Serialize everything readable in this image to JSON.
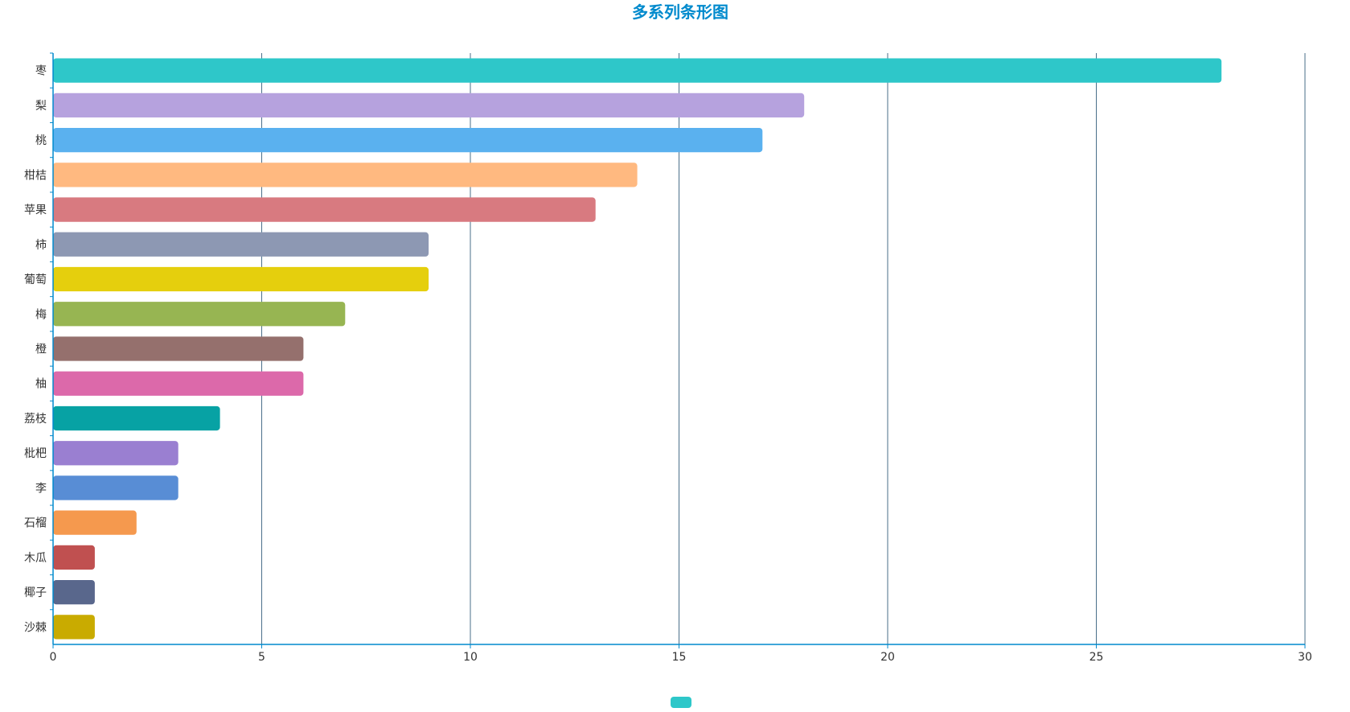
{
  "chart_data": {
    "type": "bar",
    "orientation": "horizontal",
    "title": "多系列条形图",
    "categories": [
      "枣",
      "梨",
      "桃",
      "柑桔",
      "苹果",
      "柿",
      "葡萄",
      "梅",
      "橙",
      "柚",
      "荔枝",
      "枇杷",
      "李",
      "石榴",
      "木瓜",
      "椰子",
      "沙棘"
    ],
    "values": [
      28,
      18,
      17,
      14,
      13,
      9,
      9,
      7,
      6,
      6,
      4,
      3,
      3,
      2,
      1,
      1,
      1
    ],
    "bar_colors": [
      "#2ec7c9",
      "#b6a2de",
      "#5ab1ef",
      "#ffb980",
      "#d87a80",
      "#8d98b3",
      "#e5cf0d",
      "#97b552",
      "#95706d",
      "#dc69aa",
      "#07a2a4",
      "#9a7fd1",
      "#588dd5",
      "#f5994e",
      "#c05050",
      "#59678c",
      "#c9ab00"
    ],
    "xlim": [
      0,
      30
    ],
    "x_ticks": [
      "0",
      "5",
      "10",
      "15",
      "20",
      "25",
      "30"
    ],
    "xlabel": "",
    "ylabel": "",
    "grid": "vertical",
    "legend": {
      "placement": "bottom-center",
      "color": "#2ec7c9"
    },
    "colors": {
      "title": "#008acd",
      "axis": "#008acd",
      "grid": "#4a6f8a",
      "text": "#333333"
    }
  }
}
